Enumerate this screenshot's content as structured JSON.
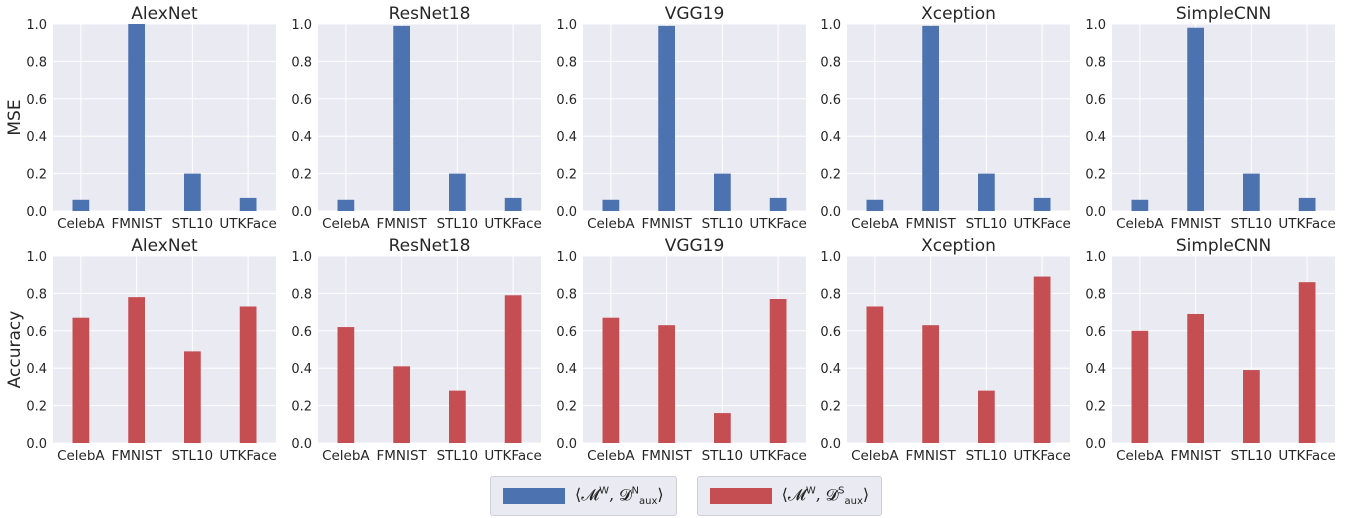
{
  "colors": {
    "series_n": "#4c72b0",
    "series_s": "#c44e52",
    "panel_bg": "#eaeaf2",
    "grid": "#ffffff"
  },
  "chart_data": [
    {
      "type": "bar",
      "row": "MSE",
      "title": "AlexNet",
      "ylabel": "MSE",
      "ylim": [
        0,
        1.0
      ],
      "yticks": [
        "0.0",
        "0.2",
        "0.4",
        "0.6",
        "0.8",
        "1.0"
      ],
      "categories": [
        "CelebA",
        "FMNIST",
        "STL10",
        "UTKFace"
      ],
      "series": [
        {
          "name": "⟨𝓜^W, 𝓓^N_aux⟩",
          "values": [
            0.06,
            1.0,
            0.2,
            0.07
          ]
        }
      ]
    },
    {
      "type": "bar",
      "row": "MSE",
      "title": "ResNet18",
      "ylabel": "",
      "ylim": [
        0,
        1.0
      ],
      "yticks": [
        "0.0",
        "0.2",
        "0.4",
        "0.6",
        "0.8",
        "1.0"
      ],
      "categories": [
        "CelebA",
        "FMNIST",
        "STL10",
        "UTKFace"
      ],
      "series": [
        {
          "name": "⟨𝓜^W, 𝓓^N_aux⟩",
          "values": [
            0.06,
            0.99,
            0.2,
            0.07
          ]
        }
      ]
    },
    {
      "type": "bar",
      "row": "MSE",
      "title": "VGG19",
      "ylabel": "",
      "ylim": [
        0,
        1.0
      ],
      "yticks": [
        "0.0",
        "0.2",
        "0.4",
        "0.6",
        "0.8",
        "1.0"
      ],
      "categories": [
        "CelebA",
        "FMNIST",
        "STL10",
        "UTKFace"
      ],
      "series": [
        {
          "name": "⟨𝓜^W, 𝓓^N_aux⟩",
          "values": [
            0.06,
            0.99,
            0.2,
            0.07
          ]
        }
      ]
    },
    {
      "type": "bar",
      "row": "MSE",
      "title": "Xception",
      "ylabel": "",
      "ylim": [
        0,
        1.0
      ],
      "yticks": [
        "0.0",
        "0.2",
        "0.4",
        "0.6",
        "0.8",
        "1.0"
      ],
      "categories": [
        "CelebA",
        "FMNIST",
        "STL10",
        "UTKFace"
      ],
      "series": [
        {
          "name": "⟨𝓜^W, 𝓓^N_aux⟩",
          "values": [
            0.06,
            0.99,
            0.2,
            0.07
          ]
        }
      ]
    },
    {
      "type": "bar",
      "row": "MSE",
      "title": "SimpleCNN",
      "ylabel": "",
      "ylim": [
        0,
        1.0
      ],
      "yticks": [
        "0.0",
        "0.2",
        "0.4",
        "0.6",
        "0.8",
        "1.0"
      ],
      "categories": [
        "CelebA",
        "FMNIST",
        "STL10",
        "UTKFace"
      ],
      "series": [
        {
          "name": "⟨𝓜^W, 𝓓^N_aux⟩",
          "values": [
            0.06,
            0.98,
            0.2,
            0.07
          ]
        }
      ]
    },
    {
      "type": "bar",
      "row": "Accuracy",
      "title": "AlexNet",
      "ylabel": "Accuracy",
      "ylim": [
        0,
        1.0
      ],
      "yticks": [
        "0.0",
        "0.2",
        "0.4",
        "0.6",
        "0.8",
        "1.0"
      ],
      "categories": [
        "CelebA",
        "FMNIST",
        "STL10",
        "UTKFace"
      ],
      "series": [
        {
          "name": "⟨𝓜^W, 𝓓^S_aux⟩",
          "values": [
            0.67,
            0.78,
            0.49,
            0.73
          ]
        }
      ]
    },
    {
      "type": "bar",
      "row": "Accuracy",
      "title": "ResNet18",
      "ylabel": "",
      "ylim": [
        0,
        1.0
      ],
      "yticks": [
        "0.0",
        "0.2",
        "0.4",
        "0.6",
        "0.8",
        "1.0"
      ],
      "categories": [
        "CelebA",
        "FMNIST",
        "STL10",
        "UTKFace"
      ],
      "series": [
        {
          "name": "⟨𝓜^W, 𝓓^S_aux⟩",
          "values": [
            0.62,
            0.41,
            0.28,
            0.79
          ]
        }
      ]
    },
    {
      "type": "bar",
      "row": "Accuracy",
      "title": "VGG19",
      "ylabel": "",
      "ylim": [
        0,
        1.0
      ],
      "yticks": [
        "0.0",
        "0.2",
        "0.4",
        "0.6",
        "0.8",
        "1.0"
      ],
      "categories": [
        "CelebA",
        "FMNIST",
        "STL10",
        "UTKFace"
      ],
      "series": [
        {
          "name": "⟨𝓜^W, 𝓓^S_aux⟩",
          "values": [
            0.67,
            0.63,
            0.16,
            0.77
          ]
        }
      ]
    },
    {
      "type": "bar",
      "row": "Accuracy",
      "title": "Xception",
      "ylabel": "",
      "ylim": [
        0,
        1.0
      ],
      "yticks": [
        "0.0",
        "0.2",
        "0.4",
        "0.6",
        "0.8",
        "1.0"
      ],
      "categories": [
        "CelebA",
        "FMNIST",
        "STL10",
        "UTKFace"
      ],
      "series": [
        {
          "name": "⟨𝓜^W, 𝓓^S_aux⟩",
          "values": [
            0.73,
            0.63,
            0.28,
            0.89
          ]
        }
      ]
    },
    {
      "type": "bar",
      "row": "Accuracy",
      "title": "SimpleCNN",
      "ylabel": "",
      "ylim": [
        0,
        1.0
      ],
      "yticks": [
        "0.0",
        "0.2",
        "0.4",
        "0.6",
        "0.8",
        "1.0"
      ],
      "categories": [
        "CelebA",
        "FMNIST",
        "STL10",
        "UTKFace"
      ],
      "series": [
        {
          "name": "⟨𝓜^W, 𝓓^S_aux⟩",
          "values": [
            0.6,
            0.69,
            0.39,
            0.86
          ]
        }
      ]
    }
  ],
  "legend": {
    "placement": "bottom-center",
    "items": [
      {
        "label_main": "⟨𝓜",
        "label_sup": "W",
        "label_mid": ", 𝓓",
        "label_sup2": "N",
        "label_sub2": "aux",
        "label_end": "⟩"
      },
      {
        "label_main": "⟨𝓜",
        "label_sup": "W",
        "label_mid": ", 𝓓",
        "label_sup2": "S",
        "label_sub2": "aux",
        "label_end": "⟩"
      }
    ]
  }
}
